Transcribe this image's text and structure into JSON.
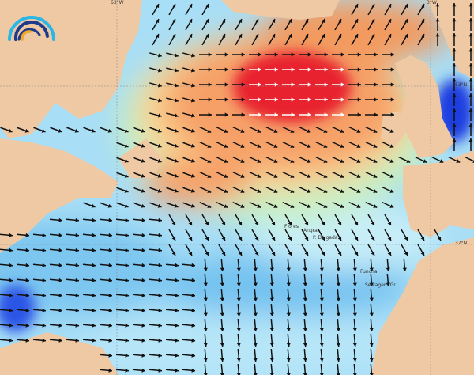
{
  "map": {
    "grid_labels": {
      "lon_left": "63°W",
      "lon_right": "3°W",
      "lat_upper": "53°N",
      "lat_lower": "37°N"
    },
    "places": [
      "Flores",
      "Angra",
      "P. Delgada",
      "Funchal",
      "Selvagem Gr."
    ],
    "colors": {
      "land": "#efc9a4",
      "sea_low": "#b5e6f8",
      "sea_mid": "#5fb8ec",
      "sea_deep": "#1a3ee0",
      "mid": "#c6f0c0",
      "high": "#f7a56a",
      "max": "#e8222e",
      "arrow": "#111111",
      "arrow_max": "#ffffff"
    },
    "logo": {
      "colors": [
        "#2ab7e8",
        "#1d3b8a",
        "#f5a623"
      ]
    }
  }
}
